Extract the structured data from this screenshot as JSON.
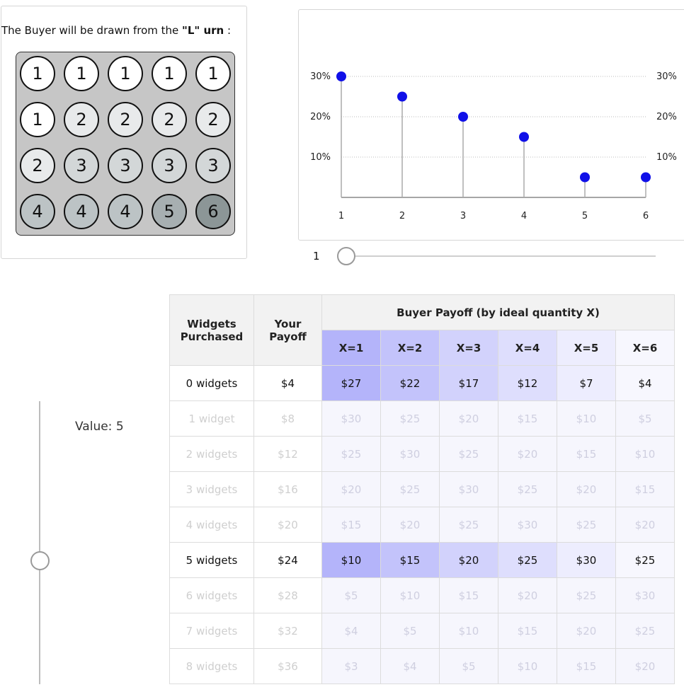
{
  "urn": {
    "caption_pre": "The Buyer will be drawn from the ",
    "caption_urn": "\"L\" urn",
    "caption_post": " :",
    "balls": [
      [
        "1",
        "1",
        "1",
        "1",
        "1"
      ],
      [
        "1",
        "2",
        "2",
        "2",
        "2"
      ],
      [
        "2",
        "3",
        "3",
        "3",
        "3"
      ],
      [
        "4",
        "4",
        "4",
        "5",
        "6"
      ]
    ],
    "colors": {
      "1": "#ffffff",
      "2": "#e8eaeb",
      "3": "#d3d7d8",
      "4": "#bcc3c5",
      "5": "#a7afb1",
      "6": "#8c9697"
    }
  },
  "chart_data": {
    "type": "scatter",
    "style": "lollipop",
    "x": [
      1,
      2,
      3,
      4,
      5,
      6
    ],
    "values": [
      0.3,
      0.25,
      0.2,
      0.15,
      0.05,
      0.05
    ],
    "xlabel": "",
    "ylabel": "",
    "ylim": [
      0,
      0.3
    ],
    "yticks": [
      "10%",
      "20%",
      "30%"
    ],
    "xticks": [
      "1",
      "2",
      "3",
      "4",
      "5",
      "6"
    ],
    "grid": "dotted-horizontal",
    "point_color": "#1010e8",
    "stem_color": "#aaaaaa"
  },
  "h_slider": {
    "value": "1",
    "min": 1,
    "max": 6
  },
  "v_slider": {
    "label": "Value: 5",
    "value": 5,
    "min": 0,
    "max": 8
  },
  "table": {
    "header_widgets": "Widgets Purchased",
    "header_payoff": "Your Payoff",
    "header_buyer": "Buyer Payoff (by ideal quantity X)",
    "x_headers": [
      "X=1",
      "X=2",
      "X=3",
      "X=4",
      "X=5",
      "X=6"
    ],
    "column_tints": [
      "#b4b4fa",
      "#c3c3fb",
      "#d2d2fc",
      "#dedefd",
      "#ededfe",
      "#f7f7fe"
    ],
    "active_rows": [
      0,
      5
    ],
    "rows": [
      {
        "label": "0 widgets",
        "payoff": "$4",
        "buyer": [
          "$27",
          "$22",
          "$17",
          "$12",
          "$7",
          "$4"
        ]
      },
      {
        "label": "1 widget",
        "payoff": "$8",
        "buyer": [
          "$30",
          "$25",
          "$20",
          "$15",
          "$10",
          "$5"
        ]
      },
      {
        "label": "2 widgets",
        "payoff": "$12",
        "buyer": [
          "$25",
          "$30",
          "$25",
          "$20",
          "$15",
          "$10"
        ]
      },
      {
        "label": "3 widgets",
        "payoff": "$16",
        "buyer": [
          "$20",
          "$25",
          "$30",
          "$25",
          "$20",
          "$15"
        ]
      },
      {
        "label": "4 widgets",
        "payoff": "$20",
        "buyer": [
          "$15",
          "$20",
          "$25",
          "$30",
          "$25",
          "$20"
        ]
      },
      {
        "label": "5 widgets",
        "payoff": "$24",
        "buyer": [
          "$10",
          "$15",
          "$20",
          "$25",
          "$30",
          "$25"
        ]
      },
      {
        "label": "6 widgets",
        "payoff": "$28",
        "buyer": [
          "$5",
          "$10",
          "$15",
          "$20",
          "$25",
          "$30"
        ]
      },
      {
        "label": "7 widgets",
        "payoff": "$32",
        "buyer": [
          "$4",
          "$5",
          "$10",
          "$15",
          "$20",
          "$25"
        ]
      },
      {
        "label": "8 widgets",
        "payoff": "$36",
        "buyer": [
          "$3",
          "$4",
          "$5",
          "$10",
          "$15",
          "$20"
        ]
      }
    ]
  }
}
